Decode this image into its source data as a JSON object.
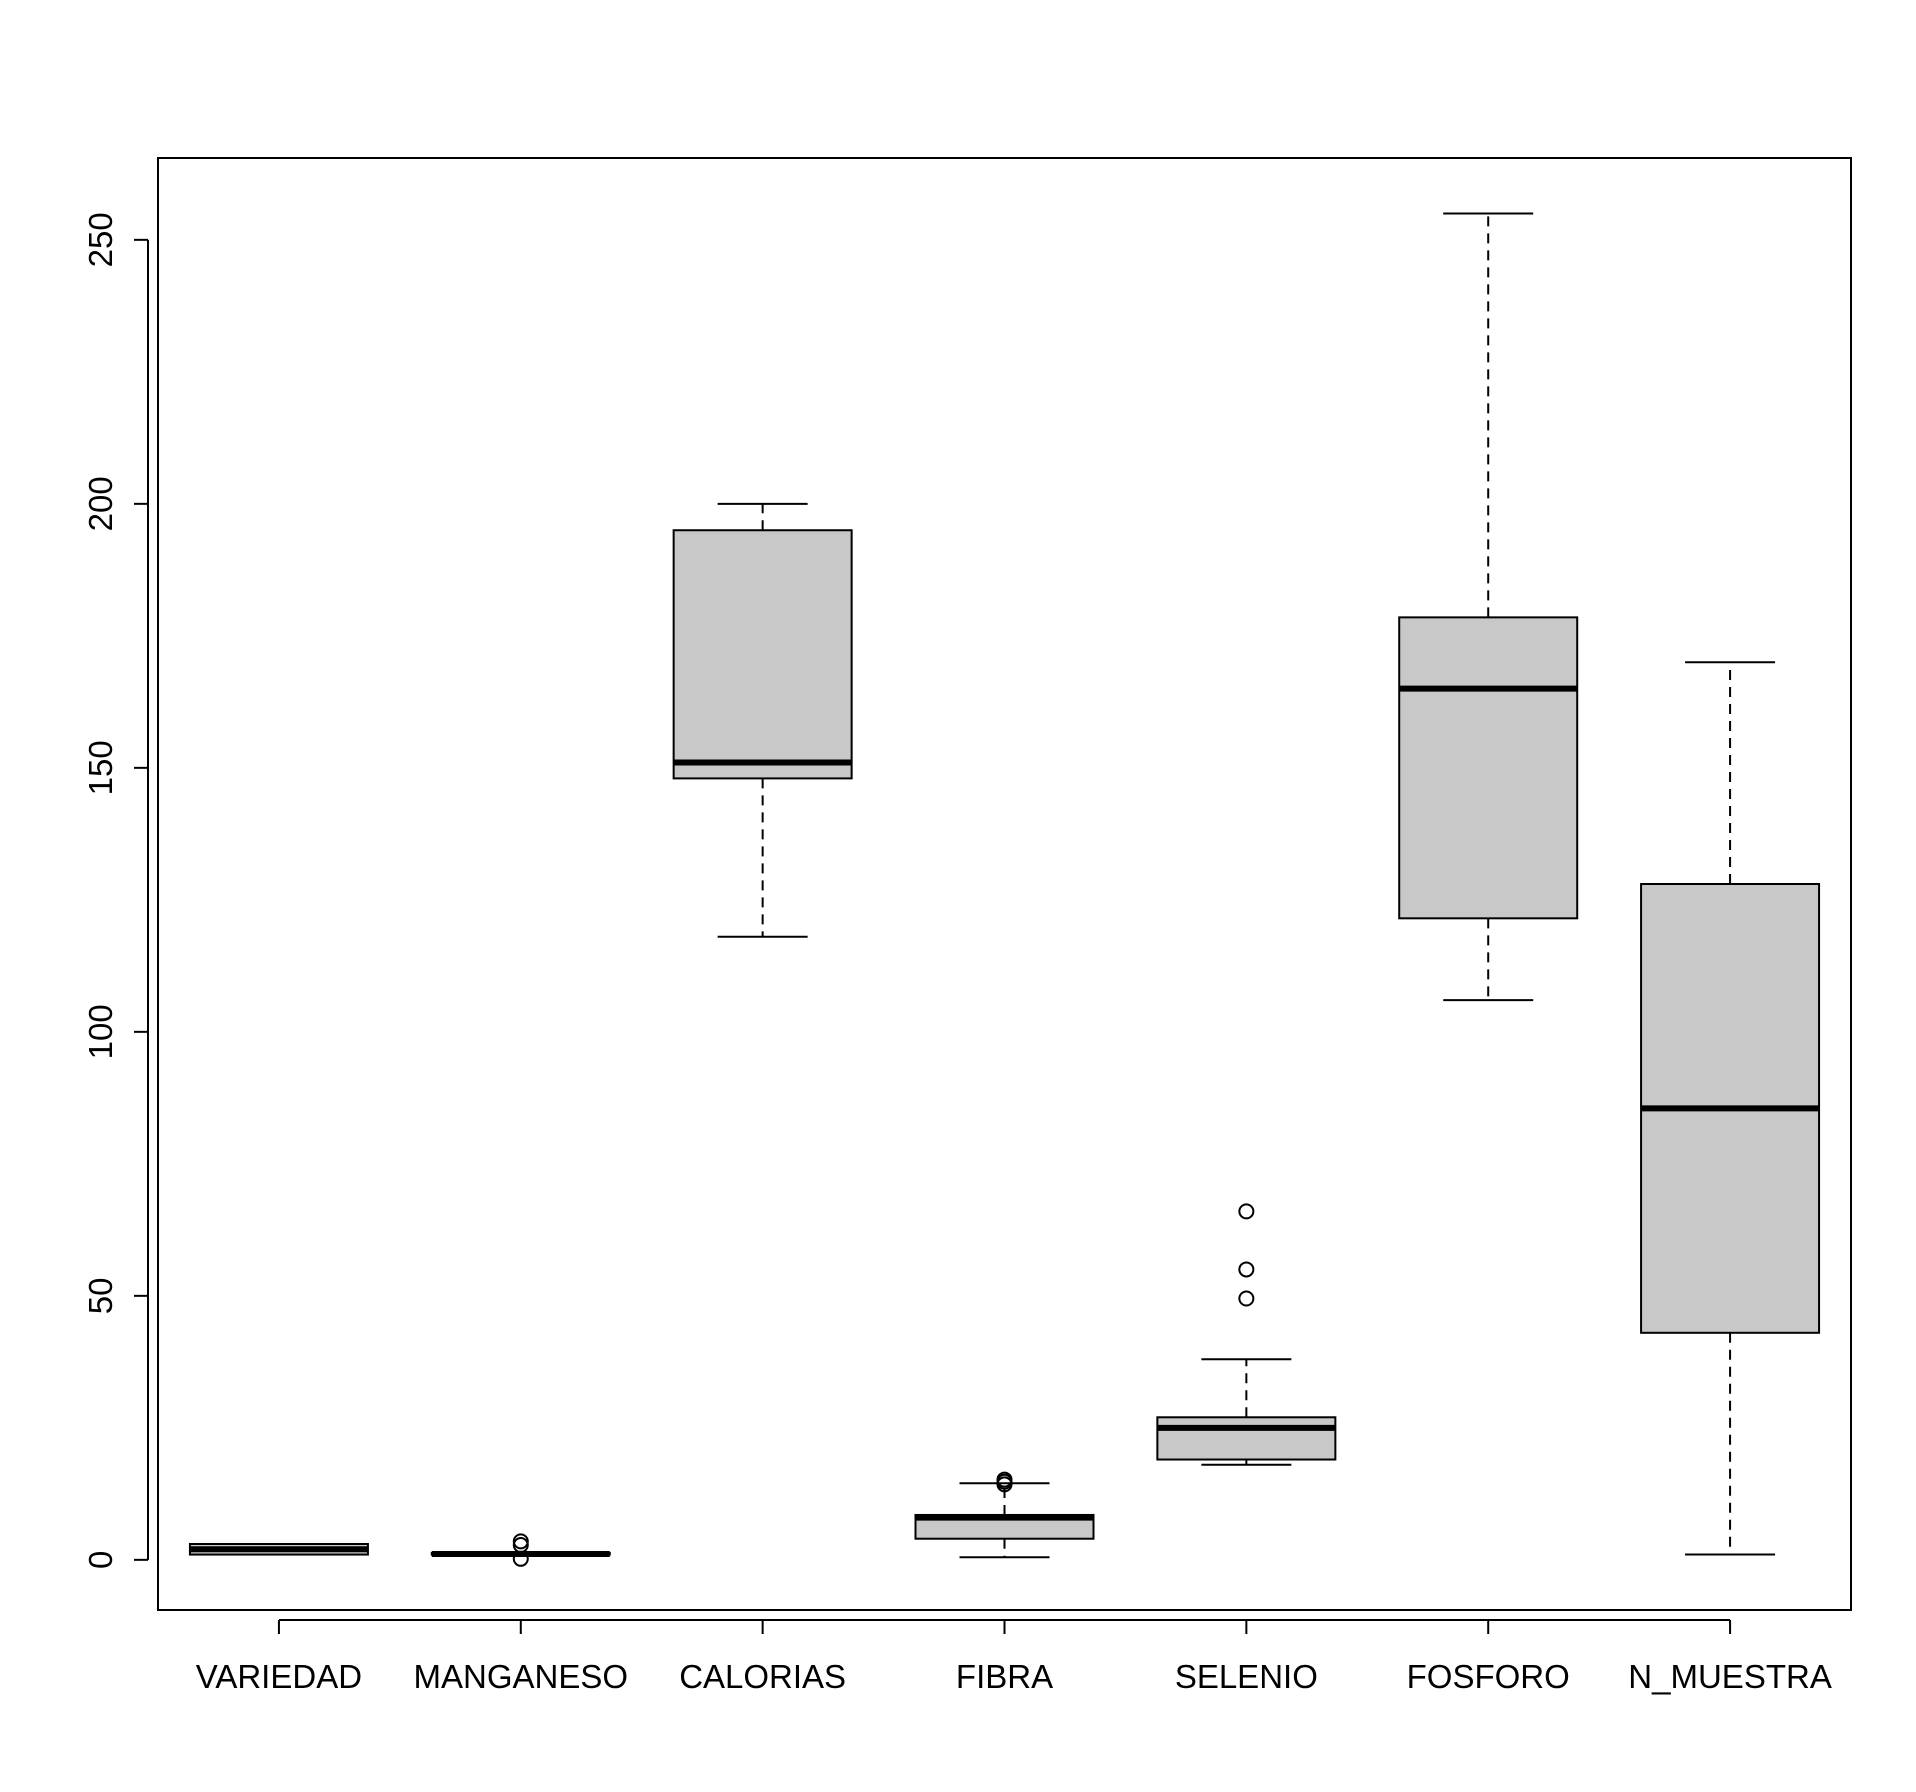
{
  "chart_data": {
    "type": "boxplot",
    "title": "",
    "xlabel": "",
    "ylabel": "",
    "ylim": [
      -9.5,
      265.5
    ],
    "y_ticks": [
      "0",
      "50",
      "100",
      "150",
      "200",
      "250"
    ],
    "grid": false,
    "legend": null,
    "box_color": "#c8c8c8",
    "categories": [
      "VARIEDAD",
      "MANGANESO",
      "CALORIAS",
      "FIBRA",
      "SELENIO",
      "FOSFORO",
      "N_MUESTRA"
    ],
    "stats": [
      {
        "min": 1,
        "q1": 1,
        "median": 2,
        "q3": 3,
        "max": 3,
        "outliers": []
      },
      {
        "min": 0.9,
        "q1": 1.0,
        "median": 1.1,
        "q3": 1.3,
        "max": 1.4,
        "outliers": [
          0.2,
          2.8,
          3.5
        ]
      },
      {
        "min": 118,
        "q1": 148,
        "median": 151,
        "q3": 195,
        "max": 200,
        "outliers": []
      },
      {
        "min": 0.5,
        "q1": 4,
        "median": 8,
        "q3": 8.5,
        "max": 14.5,
        "outliers": [
          14.3,
          14.8,
          15.2
        ]
      },
      {
        "min": 18,
        "q1": 19,
        "median": 25,
        "q3": 27,
        "max": 38,
        "outliers": [
          49.5,
          55,
          66
        ]
      },
      {
        "min": 106,
        "q1": 121.5,
        "median": 165,
        "q3": 178.5,
        "max": 255,
        "outliers": []
      },
      {
        "min": 1,
        "q1": 43,
        "median": 85.5,
        "q3": 128,
        "max": 170,
        "outliers": []
      }
    ]
  }
}
